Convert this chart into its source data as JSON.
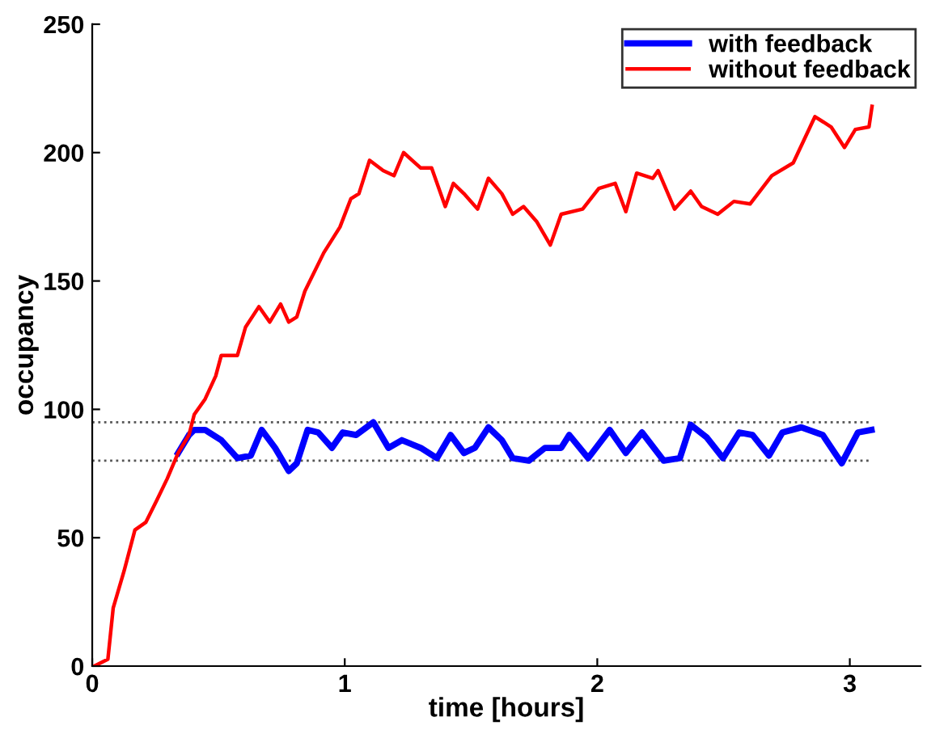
{
  "chart_data": {
    "type": "line",
    "xlabel": "time [hours]",
    "ylabel": "occupancy",
    "xlim": [
      0,
      3.28
    ],
    "ylim": [
      0,
      250
    ],
    "xticks": [
      0,
      1,
      2,
      3
    ],
    "yticks": [
      0,
      50,
      100,
      150,
      200,
      250
    ],
    "grid": false,
    "legend": "top right",
    "line_style": "solid",
    "marker": "none",
    "ref_lines": [
      {
        "axis": "y",
        "value": 95,
        "label": null,
        "color": "#555555",
        "line_style": "dotted"
      },
      {
        "axis": "y",
        "value": 80,
        "label": null,
        "color": "#555555",
        "line_style": "dotted"
      }
    ],
    "series": [
      {
        "name": "with feedback",
        "color": "#0000ff",
        "x": [
          0.34,
          0.383,
          0.404,
          0.447,
          0.511,
          0.575,
          0.628,
          0.671,
          0.724,
          0.778,
          0.81,
          0.853,
          0.895,
          0.949,
          0.992,
          1.045,
          1.113,
          1.173,
          1.226,
          1.301,
          1.365,
          1.419,
          1.472,
          1.515,
          1.569,
          1.622,
          1.665,
          1.729,
          1.793,
          1.857,
          1.889,
          1.964,
          2.049,
          2.113,
          2.177,
          2.263,
          2.327,
          2.37,
          2.434,
          2.498,
          2.562,
          2.615,
          2.68,
          2.733,
          2.808,
          2.893,
          2.968,
          3.032,
          3.086
        ],
        "values": [
          83,
          90,
          92,
          92,
          88,
          81,
          82,
          92,
          85,
          76,
          79,
          92,
          91,
          85,
          91,
          90,
          95,
          85,
          88,
          85,
          81,
          90,
          83,
          85,
          93,
          88,
          81,
          80,
          85,
          85,
          90,
          81,
          92,
          83,
          91,
          80,
          81,
          94,
          89,
          81,
          91,
          90,
          82,
          91,
          93,
          90,
          79,
          91,
          92
        ]
      },
      {
        "name": "without feedback",
        "color": "#ff0000",
        "x": [
          0.008,
          0.062,
          0.083,
          0.126,
          0.169,
          0.212,
          0.255,
          0.297,
          0.34,
          0.383,
          0.404,
          0.447,
          0.489,
          0.511,
          0.575,
          0.607,
          0.66,
          0.703,
          0.746,
          0.778,
          0.81,
          0.842,
          0.917,
          0.981,
          1.024,
          1.056,
          1.098,
          1.152,
          1.195,
          1.233,
          1.301,
          1.344,
          1.398,
          1.43,
          1.472,
          1.526,
          1.569,
          1.622,
          1.665,
          1.708,
          1.761,
          1.814,
          1.857,
          1.942,
          2.006,
          2.071,
          2.113,
          2.156,
          2.22,
          2.241,
          2.306,
          2.37,
          2.413,
          2.477,
          2.541,
          2.605,
          2.691,
          2.776,
          2.862,
          2.926,
          2.979,
          3.022,
          3.076,
          3.088
        ],
        "values": [
          0,
          2.7,
          22.6,
          37,
          53,
          56,
          64.5,
          73,
          83,
          90,
          98,
          104,
          113,
          121,
          121,
          132,
          140,
          134,
          141,
          134,
          136,
          146,
          161,
          171,
          182,
          184,
          197,
          193,
          191,
          200,
          194,
          194,
          179,
          188,
          184,
          178,
          190,
          184,
          176,
          179,
          173,
          164,
          176,
          178,
          186,
          188,
          177,
          192,
          190,
          193,
          178,
          185,
          179,
          176,
          181,
          180,
          191,
          196,
          214,
          210,
          202,
          209,
          210,
          218
        ]
      }
    ]
  }
}
